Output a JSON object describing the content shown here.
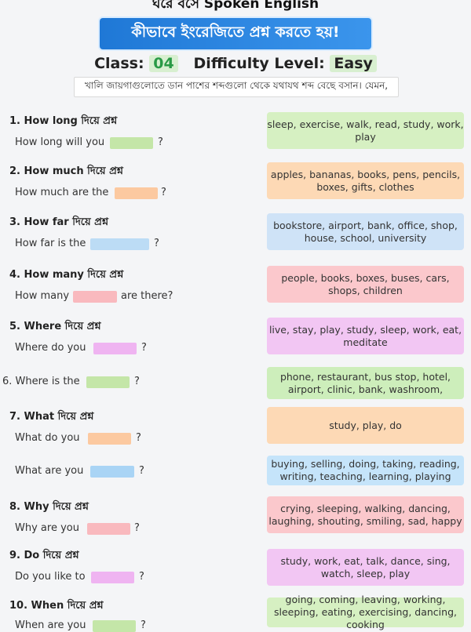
{
  "header": {
    "top_title": "ঘরে বসে Spoken English",
    "banner": "কীভাবে ইংরেজিতে প্রশ্ন করতে হয়!",
    "class_label": "Class:",
    "class_number": "04",
    "difficulty_label": "Difficulty Level:",
    "difficulty_value": "Easy",
    "instruction": "খালি জায়গাগুলোতে ডান পাশের শব্দগুলো থেকে যথাযথ শব্দ বেছে বসান। যেমন,"
  },
  "questions": [
    {
      "title": "1. How long দিয়ে প্রশ্ন",
      "sentence": "How long will you",
      "tail": "?",
      "words": "sleep, exercise, walk, read, study, work, play",
      "color": "#c4e6a8"
    },
    {
      "title": "2. How much দিয়ে প্রশ্ন",
      "sentence": "How much are the",
      "tail": "?",
      "words": "apples, bananas, books, pens, pencils, boxes, gifts, clothes",
      "color": "#fcc9a0"
    },
    {
      "title": "3. How far দিয়ে প্রশ্ন",
      "sentence": "How far is the",
      "tail": "?",
      "words": "bookstore, airport, bank, office, shop, house, school, university",
      "color": "#bcdcf5"
    },
    {
      "title": "4. How many দিয়ে প্রশ্ন",
      "sentence": "How many",
      "tail": "are there?",
      "words": "people, books, boxes, buses, cars, shops, children",
      "color": "#f9b9be"
    },
    {
      "title": "5. Where দিয়ে প্রশ্ন",
      "sentence": "Where do you",
      "tail": "?",
      "words": "live, stay, play, study, sleep, work, eat, meditate",
      "color": "#efb4f1"
    },
    {
      "title": "",
      "sentence": "6. Where is the",
      "tail": "?",
      "words": "phone, restaurant, bus stop, hotel, airport, clinic, bank, washroom,",
      "color": "#c4e6a8"
    },
    {
      "title": "7. What দিয়ে প্রশ্ন",
      "sentence": "What do you",
      "tail": "?",
      "words": "study, play, do",
      "color": "#fcc9a0"
    },
    {
      "title": "",
      "sentence": "What are you",
      "tail": "?",
      "words": "buying, selling, doing, taking, reading, writing, teaching, learning, playing",
      "color": "#a9d4f5"
    },
    {
      "title": "8. Why দিয়ে প্রশ্ন",
      "sentence": "Why are you",
      "tail": "?",
      "words": "crying, sleeping, walking, dancing, laughing, shouting, smiling, sad, happy",
      "color": "#f9b9be"
    },
    {
      "title": "9. Do দিয়ে প্রশ্ন",
      "sentence": "Do you like to",
      "tail": "?",
      "words": "study, work, eat, talk, dance, sing, watch, sleep, play",
      "color": "#efb4f1"
    },
    {
      "title": "10. When দিয়ে প্রশ্ন",
      "sentence": "When are you",
      "tail": "?",
      "words": "going, coming, leaving, working, sleeping, eating, exercising, dancing, cooking",
      "color": "#c4e6a8"
    }
  ]
}
